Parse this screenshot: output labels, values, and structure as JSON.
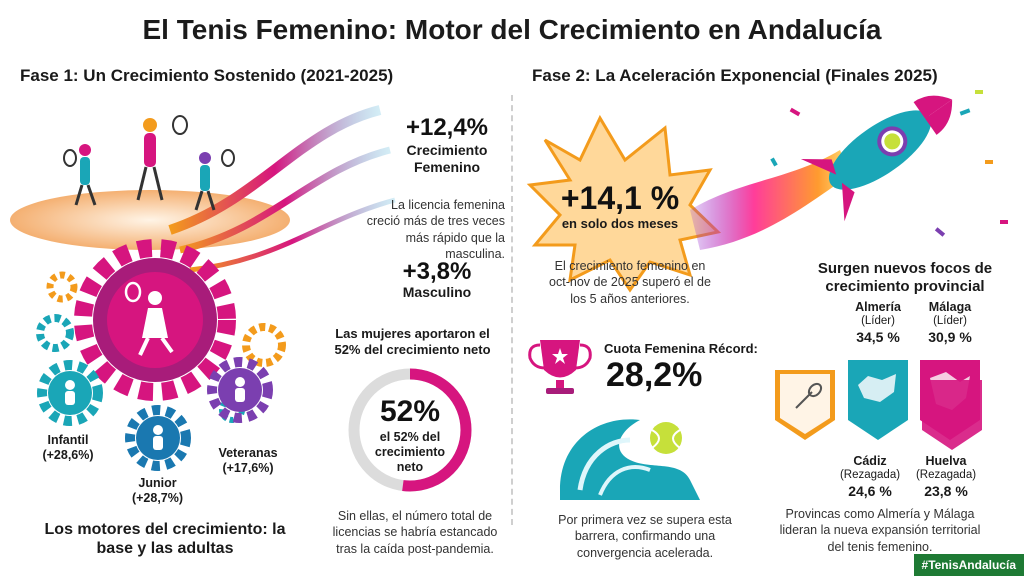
{
  "title": "El Tenis Femenino: Motor del Crecimiento en Andalucía",
  "phase1": {
    "heading": "Fase 1: Un Crecimiento Sostenido (2021-2025)",
    "female_growth": "+12,4%",
    "female_growth_label": "Crecimiento Femenino",
    "female_note": "La licencia femenina creció más de tres veces más rápido que la masculina.",
    "male_growth": "+3,8%",
    "male_growth_label": "Masculino",
    "share_intro": "Las mujeres aportaron el 52% del crecimiento neto",
    "donut_value": "52%",
    "donut_label": "el 52% del crecimiento neto",
    "donut_fraction": 0.52,
    "donut_note": "Sin ellas, el número total de licencias se habría estancado tras la caída post-pandemia.",
    "gears": [
      {
        "name": "Infantil",
        "value": "(+28,6%)"
      },
      {
        "name": "Junior",
        "value": "(+28,7%)"
      },
      {
        "name": "Veteranas",
        "value": "(+17,6%)"
      }
    ],
    "engines_caption": "Los motores del crecimiento: la base y las adultas"
  },
  "phase2": {
    "heading": "Fase 2: La Aceleración Exponencial (Finales 2025)",
    "burst_value": "+14,1 %",
    "burst_label": "en solo dos meses",
    "burst_note": "El crecimiento femenino en oct-nov de 2025 superó el de los 5 años anteriores.",
    "quota_label": "Cuota Femenina Récord:",
    "quota_value": "28,2%",
    "wave_note": "Por primera vez se supera esta barrera, confirmando una convergencia acelerada.",
    "foci_title": "Surgen nuevos focos de crecimiento provincial",
    "provinces": [
      {
        "name": "Almería",
        "status": "(Líder)",
        "value": "34,5 %"
      },
      {
        "name": "Málaga",
        "status": "(Líder)",
        "value": "30,9 %"
      },
      {
        "name": "Cádiz",
        "status": "(Rezagada)",
        "value": "24,6 %"
      },
      {
        "name": "Huelva",
        "status": "(Rezagada)",
        "value": "23,8 %"
      }
    ],
    "provinces_note": "Provincas como Almería y Málaga lideran la nueva expansión territorial del tenis femenino."
  },
  "hashtag": "#TenisAndalucía",
  "colors": {
    "magenta": "#d6157f",
    "orange": "#f39b1c",
    "teal": "#1aa6b7",
    "purple": "#7b3fb0",
    "green_tag": "#1e7a34"
  }
}
